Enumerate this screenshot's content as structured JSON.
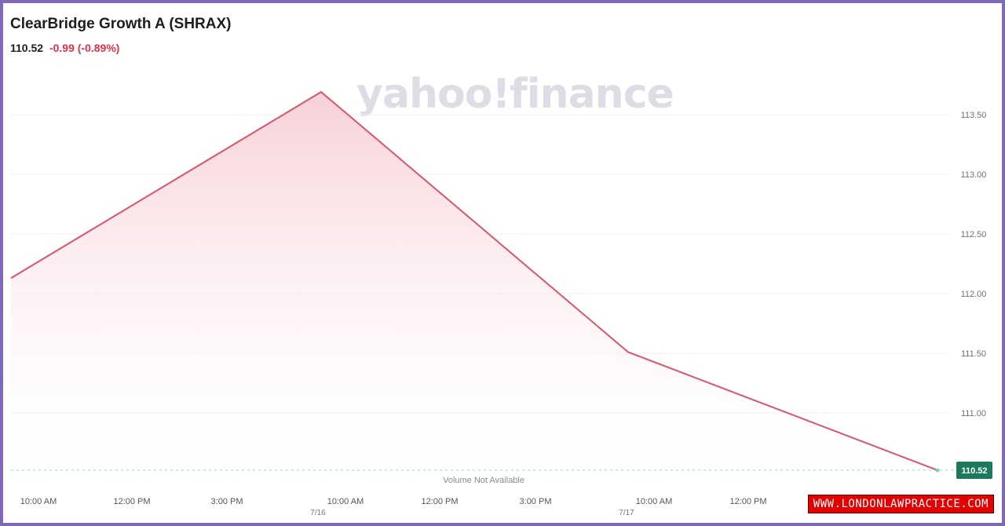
{
  "header": {
    "title": "ClearBridge Growth A (SHRAX)",
    "price": "110.52",
    "change": "-0.99 (-0.89%)"
  },
  "watermark": "yahoo!finance",
  "overlay_badge": "WWW.LONDONLAWPRACTICE.COM",
  "colors": {
    "line": "#d9566a",
    "fill_top": "#f6ccd3",
    "last_badge": "#1b7a5c",
    "reference_line": "#9fd9cb",
    "frame": "#7d69b6"
  },
  "chart_data": {
    "type": "area",
    "title": "ClearBridge Growth A (SHRAX)",
    "x_ticks": [
      "10:00 AM",
      "12:00 PM",
      "3:00 PM",
      "10:00 AM",
      "12:00 PM",
      "3:00 PM",
      "10:00 AM",
      "12:00 PM"
    ],
    "x_tick_dates": [
      "",
      "",
      "",
      "7/16",
      "",
      "",
      "7/17",
      ""
    ],
    "y_ticks": [
      "113.50",
      "113.00",
      "112.50",
      "112.00",
      "111.50",
      "111.00"
    ],
    "ylim": [
      110.5,
      113.7
    ],
    "series": [
      {
        "x": [
          "7/15 9:30 AM",
          "7/16 9:30 AM",
          "7/17 9:30 AM",
          "7/18 9:30 AM"
        ],
        "values": [
          112.13,
          113.69,
          111.51,
          110.52
        ]
      }
    ],
    "last_value": "110.52",
    "volume_note": "Volume Not Available",
    "grid": true
  }
}
